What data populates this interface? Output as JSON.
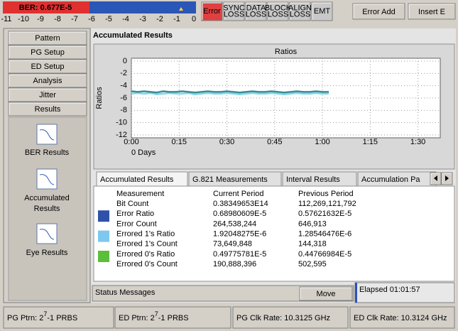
{
  "ber_bar": {
    "label": "BER: 0.677E-5",
    "scale": [
      -11,
      -10,
      -9,
      -8,
      -7,
      -6,
      -5,
      -4,
      -3,
      -2,
      -1,
      0
    ]
  },
  "flags": [
    [
      "Error"
    ],
    [
      "SYNC",
      "LOSS"
    ],
    [
      "DATA",
      "LOSS"
    ],
    [
      "BLOCK",
      "LOSS"
    ],
    [
      "ALIGN",
      "LOSS"
    ],
    [
      "EMT"
    ]
  ],
  "buttons": [
    "Error Add",
    "Insert E"
  ],
  "nav": [
    "Pattern",
    "PG Setup",
    "ED Setup",
    "Analysis",
    "Jitter",
    "Results"
  ],
  "result_icons": [
    [
      "BER Results"
    ],
    [
      "Accumulated",
      "Results"
    ],
    [
      "Eye Results"
    ]
  ],
  "title": "Accumulated Results",
  "chart": {
    "type": "line",
    "title": "Ratios",
    "y_label": "Ratios",
    "x_sub": "0 Days",
    "ylim": [
      -12,
      0
    ],
    "yticks": [
      0,
      -2,
      -4,
      -6,
      -8,
      -10,
      -12
    ],
    "xlim": [
      0,
      97
    ],
    "xticks": [
      {
        "value": 0,
        "label": "0:00"
      },
      {
        "value": 15,
        "label": "0:15"
      },
      {
        "value": 30,
        "label": "0:30"
      },
      {
        "value": 45,
        "label": "0:45"
      },
      {
        "value": 60,
        "label": "1:00"
      },
      {
        "value": 75,
        "label": "1:15"
      },
      {
        "value": 90,
        "label": "1:30"
      }
    ],
    "grid": true,
    "x": [
      0,
      2,
      4,
      6,
      8,
      10,
      12,
      14,
      16,
      18,
      20,
      22,
      24,
      26,
      28,
      30,
      32,
      34,
      36,
      38,
      40,
      42,
      44,
      46,
      48,
      50,
      52,
      54,
      56,
      58,
      60,
      62
    ],
    "series": [
      {
        "color": "#7fd6ea",
        "values": [
          -5.3,
          -5.2,
          -5.3,
          -5.2,
          -5.4,
          -5.3,
          -5.2,
          -5.3,
          -5.3,
          -5.2,
          -5.4,
          -5.3,
          -5.2,
          -5.3,
          -5.3,
          -5.2,
          -5.3,
          -5.4,
          -5.3,
          -5.2,
          -5.3,
          -5.3,
          -5.2,
          -5.3,
          -5.4,
          -5.3,
          -5.2,
          -5.3,
          -5.3,
          -5.2,
          -5.3,
          -5.3
        ]
      },
      {
        "color": "#3b8c96",
        "values": [
          -4.9,
          -5.0,
          -4.9,
          -5.0,
          -5.1,
          -4.9,
          -5.0,
          -5.0,
          -4.9,
          -5.0,
          -5.1,
          -5.0,
          -4.9,
          -5.0,
          -5.0,
          -4.9,
          -5.0,
          -5.1,
          -5.0,
          -4.9,
          -5.0,
          -5.0,
          -4.9,
          -5.0,
          -5.1,
          -5.0,
          -4.9,
          -5.0,
          -5.0,
          -4.9,
          -5.0,
          -5.0
        ]
      }
    ]
  },
  "tabs": [
    "Accumulated Results",
    "G.821 Measurements",
    "Interval Results",
    "Accumulation Pa"
  ],
  "table": {
    "headers": [
      "Measurement",
      "Current Period",
      "Previous Period"
    ],
    "rows": [
      {
        "cells": [
          "Bit Count",
          "0.38349653E14",
          "112,269,121,792"
        ]
      },
      {
        "cells": [
          "Error Ratio",
          "0.68980609E-5",
          "0.57621632E-5"
        ],
        "color": "#2f52a8"
      },
      {
        "cells": [
          "Error Count",
          "264,538,244",
          "646,913"
        ]
      },
      {
        "cells": [
          "Errored 1's Ratio",
          "1.92048275E-6",
          "1.28546476E-6"
        ],
        "color": "#7cc8ee"
      },
      {
        "cells": [
          "Errored 1's Count",
          "73,649,848",
          "144,318"
        ]
      },
      {
        "cells": [
          "Errored 0's Ratio",
          "0.49775781E-5",
          "0.44766984E-5"
        ],
        "color": "#5cbf3a"
      },
      {
        "cells": [
          "Errored 0's Count",
          "190,888,396",
          "502,595"
        ]
      }
    ]
  },
  "status": {
    "label": "Status Messages",
    "button": "Move",
    "elapsed": "Elapsed 01:01:57"
  },
  "footer": [
    {
      "pre": "PG Ptrn: 2",
      "sup": "7",
      "post": "-1 PRBS"
    },
    {
      "pre": "ED Ptrn: 2",
      "sup": "7",
      "post": "-1 PRBS"
    },
    {
      "pre": "PG Clk Rate: 10.3125 GHz"
    },
    {
      "pre": "ED Clk Rate: 10.3124 GHz"
    }
  ]
}
